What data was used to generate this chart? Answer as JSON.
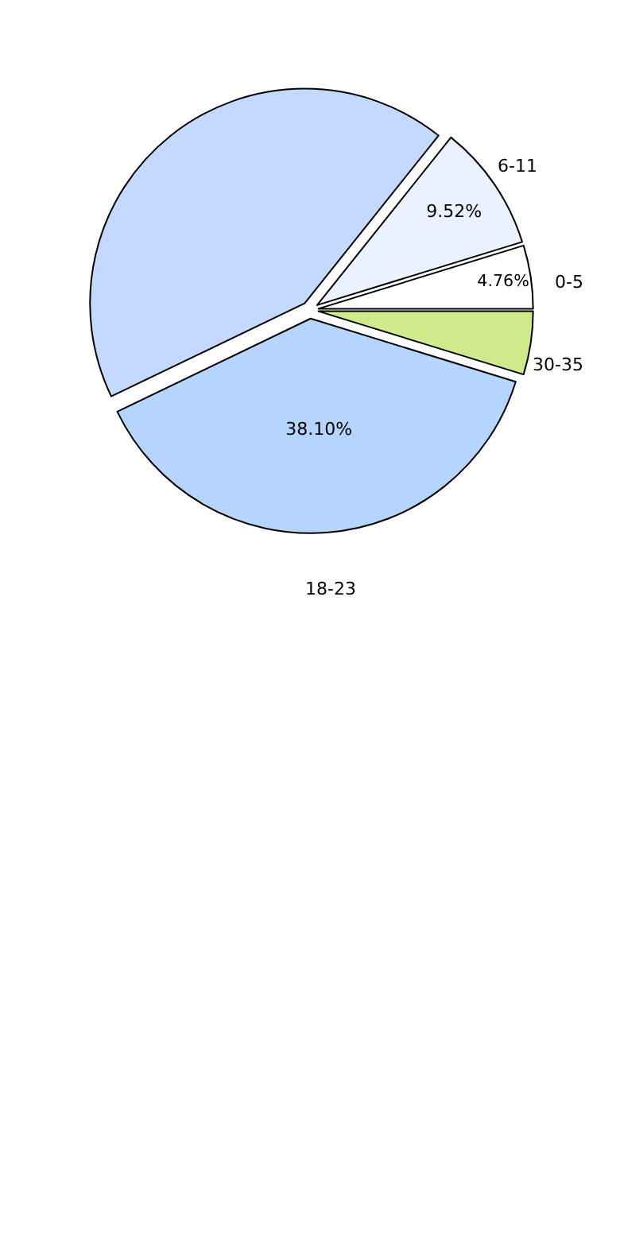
{
  "chart_data": {
    "type": "pie",
    "categories": [
      "0-5",
      "6-11",
      null,
      "18-23",
      "30-35"
    ],
    "values": [
      4.76,
      9.52,
      42.86,
      38.1,
      4.76
    ],
    "colors": [
      "#ffffff",
      "#eaf1ff",
      "#c4d9ff",
      "#b5d5ff",
      "#ceea8a"
    ],
    "value_labels": [
      "4.76%",
      "9.52%",
      null,
      "38.10%",
      null
    ],
    "legend": false
  }
}
